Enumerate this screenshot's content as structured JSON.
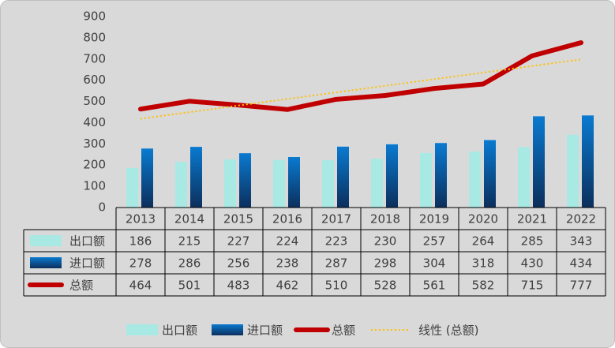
{
  "chart_data": {
    "type": "bar",
    "categories": [
      "2013",
      "2014",
      "2015",
      "2016",
      "2017",
      "2018",
      "2019",
      "2020",
      "2021",
      "2022"
    ],
    "series": [
      {
        "name": "出口额",
        "color": "#a9e9e4",
        "values": [
          186,
          215,
          227,
          224,
          223,
          230,
          257,
          264,
          285,
          343
        ]
      },
      {
        "name": "进口额",
        "color": "#0a7ad0",
        "values": [
          278,
          286,
          256,
          238,
          287,
          298,
          304,
          318,
          430,
          434
        ]
      },
      {
        "name": "总额",
        "type": "line",
        "color": "#c00000",
        "values": [
          464,
          501,
          483,
          462,
          510,
          528,
          561,
          582,
          715,
          777
        ]
      }
    ],
    "trendline": {
      "name": "线性 (总额)",
      "color": "#ffc000"
    },
    "ylim": [
      0,
      900
    ],
    "yticks": [
      0,
      100,
      200,
      300,
      400,
      500,
      600,
      700,
      800,
      900
    ],
    "grid": false,
    "legend": "bottom"
  }
}
